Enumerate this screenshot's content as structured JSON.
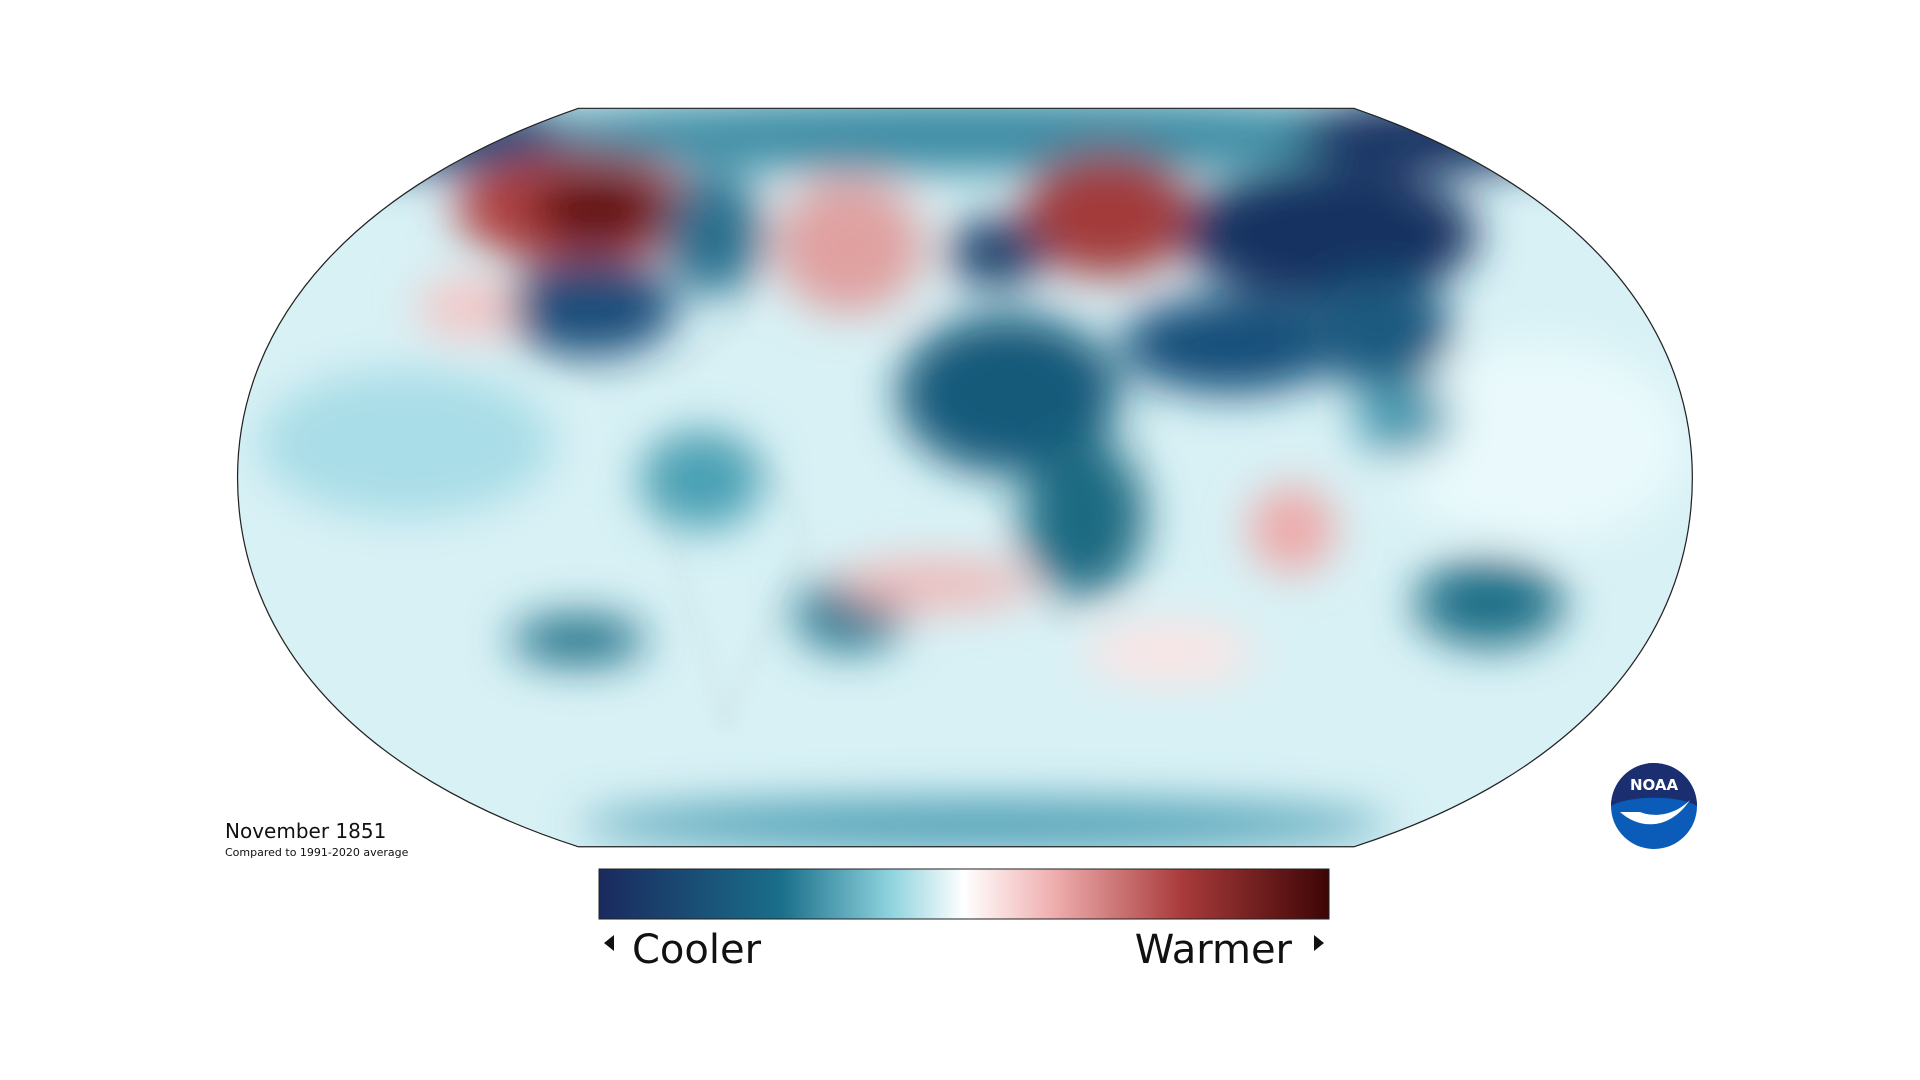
{
  "title": "November 1851",
  "subtitle": "Compared to 1991-2020 average",
  "legend": {
    "low": "Cooler",
    "high": "Warmer"
  },
  "logo": "NOAA"
}
